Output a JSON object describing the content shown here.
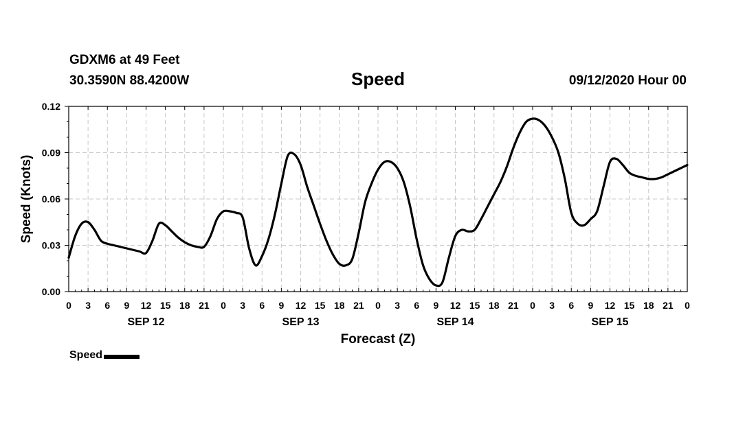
{
  "header": {
    "station": "GDXM6 at 49 Feet",
    "coords": "30.3590N 88.4200W",
    "title": "Speed",
    "issued": "09/12/2020 Hour 00"
  },
  "legend": {
    "label": "Speed",
    "color": "#000000"
  },
  "chart_data": {
    "type": "line",
    "title": "Speed",
    "xlabel": "Forecast (Z)",
    "ylabel": "Speed (Knots)",
    "x_unit": "hours from 09/12/2020 00Z",
    "xlim": [
      0,
      96
    ],
    "ylim": [
      0,
      0.12
    ],
    "y_ticks": [
      "0.00",
      "0.03",
      "0.06",
      "0.09",
      "0.12"
    ],
    "x_tick_labels": [
      "0",
      "3",
      "6",
      "9",
      "12",
      "15",
      "18",
      "21",
      "0",
      "3",
      "6",
      "9",
      "12",
      "15",
      "18",
      "21",
      "0",
      "3",
      "6",
      "9",
      "12",
      "15",
      "18",
      "21",
      "0",
      "3",
      "6",
      "9",
      "12",
      "15",
      "18",
      "21",
      "0"
    ],
    "day_labels": [
      {
        "label": "SEP 12",
        "hour": 12
      },
      {
        "label": "SEP 13",
        "hour": 36
      },
      {
        "label": "SEP 14",
        "hour": 60
      },
      {
        "label": "SEP 15",
        "hour": 84
      }
    ],
    "grid": true,
    "legend_position": "bottom-left",
    "series": [
      {
        "name": "Speed",
        "color": "#000000",
        "x": [
          0,
          1,
          2,
          3,
          4,
          5,
          6,
          7,
          8,
          9,
          10,
          11,
          12,
          13,
          14,
          15,
          16,
          17,
          18,
          19,
          20,
          21,
          22,
          23,
          24,
          25,
          26,
          27,
          28,
          29,
          30,
          31,
          32,
          33,
          34,
          35,
          36,
          37,
          38,
          39,
          40,
          41,
          42,
          43,
          44,
          45,
          46,
          47,
          48,
          49,
          50,
          51,
          52,
          53,
          54,
          55,
          56,
          57,
          58,
          59,
          60,
          61,
          62,
          63,
          64,
          65,
          66,
          67,
          68,
          69,
          70,
          71,
          72,
          73,
          74,
          75,
          76,
          77,
          78,
          79,
          80,
          81,
          82,
          83,
          84,
          85,
          86,
          87,
          88,
          89,
          90,
          91,
          92,
          93,
          94,
          95,
          96
        ],
        "y": [
          0.022,
          0.036,
          0.044,
          0.045,
          0.04,
          0.033,
          0.031,
          0.03,
          0.029,
          0.028,
          0.027,
          0.026,
          0.025,
          0.033,
          0.044,
          0.043,
          0.039,
          0.035,
          0.032,
          0.03,
          0.029,
          0.029,
          0.036,
          0.047,
          0.052,
          0.052,
          0.051,
          0.048,
          0.028,
          0.017,
          0.023,
          0.034,
          0.05,
          0.07,
          0.088,
          0.089,
          0.082,
          0.068,
          0.056,
          0.044,
          0.033,
          0.024,
          0.018,
          0.017,
          0.021,
          0.038,
          0.058,
          0.07,
          0.079,
          0.084,
          0.084,
          0.08,
          0.071,
          0.055,
          0.034,
          0.017,
          0.008,
          0.004,
          0.006,
          0.022,
          0.036,
          0.04,
          0.039,
          0.04,
          0.047,
          0.055,
          0.063,
          0.071,
          0.081,
          0.093,
          0.103,
          0.11,
          0.112,
          0.111,
          0.107,
          0.1,
          0.09,
          0.073,
          0.051,
          0.044,
          0.043,
          0.047,
          0.052,
          0.068,
          0.084,
          0.086,
          0.082,
          0.077,
          0.075,
          0.074,
          0.073,
          0.073,
          0.074,
          0.076,
          0.078,
          0.08,
          0.082
        ]
      }
    ]
  }
}
